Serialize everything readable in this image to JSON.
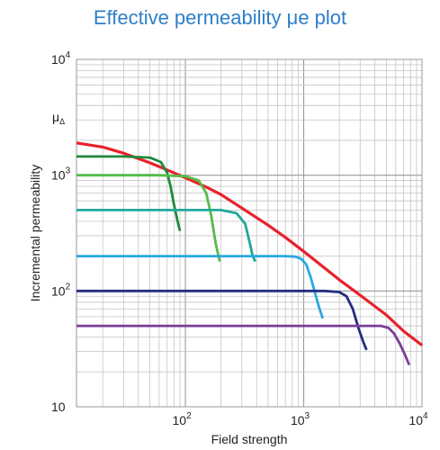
{
  "chart_data": {
    "type": "line",
    "title": "Effective permeability μe plot",
    "xlabel": "Field strength",
    "ylabel": "Incremental permeability",
    "y_unit_label": "μ",
    "y_unit_sub": "Δ",
    "x_scale": "log",
    "y_scale": "log",
    "xlim": [
      12,
      10000
    ],
    "ylim": [
      10,
      10000
    ],
    "grid": true,
    "legend": "none",
    "x_ticks": [
      {
        "value": 100,
        "base": "10",
        "exp": "2"
      },
      {
        "value": 1000,
        "base": "10",
        "exp": "3"
      },
      {
        "value": 10000,
        "base": "10",
        "exp": "4"
      }
    ],
    "y_ticks": [
      {
        "value": 10,
        "base": "10",
        "exp": ""
      },
      {
        "value": 100,
        "base": "10",
        "exp": "2"
      },
      {
        "value": 1000,
        "base": "10",
        "exp": "3"
      },
      {
        "value": 10000,
        "base": "10",
        "exp": "4"
      }
    ],
    "series": [
      {
        "color": "#e8212b",
        "width": 3.2,
        "x": [
          12,
          20,
          30,
          50,
          70,
          100,
          150,
          200,
          300,
          500,
          700,
          1000,
          1500,
          2000,
          3000,
          5000,
          7000,
          10000
        ],
        "y": [
          1900,
          1750,
          1550,
          1280,
          1110,
          950,
          790,
          680,
          520,
          370,
          290,
          220,
          158,
          125,
          92,
          62,
          45,
          34
        ]
      },
      {
        "color": "#1f8a3c",
        "width": 2.8,
        "x": [
          12,
          30,
          50,
          62,
          70,
          75,
          80,
          86,
          90
        ],
        "y": [
          1450,
          1450,
          1420,
          1300,
          1050,
          800,
          560,
          400,
          330
        ]
      },
      {
        "color": "#55bb48",
        "width": 2.8,
        "x": [
          12,
          60,
          100,
          130,
          150,
          165,
          180,
          195
        ],
        "y": [
          1000,
          1000,
          980,
          900,
          700,
          450,
          260,
          180
        ]
      },
      {
        "color": "#20a89a",
        "width": 2.8,
        "x": [
          12,
          100,
          200,
          270,
          320,
          350,
          370,
          390
        ],
        "y": [
          500,
          500,
          500,
          470,
          380,
          260,
          200,
          180
        ]
      },
      {
        "color": "#29a8e0",
        "width": 2.8,
        "x": [
          12,
          200,
          700,
          850,
          950,
          1050,
          1150,
          1250,
          1350,
          1450
        ],
        "y": [
          200,
          200,
          200,
          198,
          190,
          170,
          130,
          95,
          72,
          58
        ]
      },
      {
        "color": "#232c7e",
        "width": 2.8,
        "x": [
          12,
          300,
          1500,
          2000,
          2300,
          2600,
          2900,
          3200,
          3400
        ],
        "y": [
          100,
          100,
          100,
          98,
          90,
          70,
          48,
          36,
          31
        ]
      },
      {
        "color": "#7b3f98",
        "width": 2.8,
        "x": [
          12,
          500,
          3000,
          4500,
          5200,
          5800,
          6500,
          7200,
          7800
        ],
        "y": [
          50,
          50,
          50,
          50,
          48,
          43,
          35,
          28,
          23
        ]
      }
    ]
  }
}
